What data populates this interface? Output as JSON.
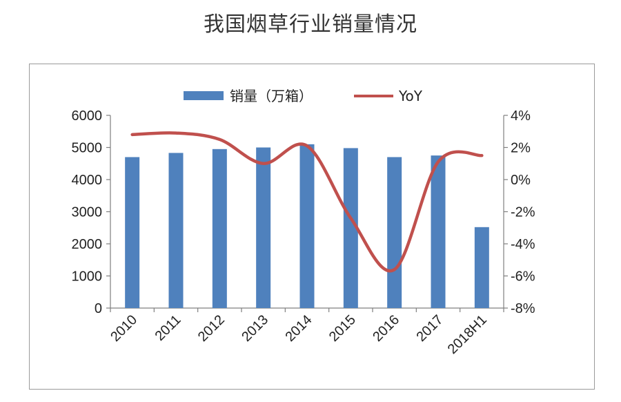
{
  "chart_data": {
    "type": "bar",
    "title": "我国烟草行业销量情况",
    "categories": [
      "2010",
      "2011",
      "2012",
      "2013",
      "2014",
      "2015",
      "2016",
      "2017",
      "2018H1"
    ],
    "series": [
      {
        "name": "销量（万箱）",
        "type": "bar",
        "axis": "left",
        "color": "#4F81BD",
        "values": [
          4700,
          4830,
          4950,
          5000,
          5100,
          4980,
          4700,
          4750,
          2520
        ]
      },
      {
        "name": "YoY",
        "type": "line",
        "axis": "right",
        "color": "#C0504D",
        "values": [
          2.8,
          2.9,
          2.5,
          1.0,
          2.1,
          -2.4,
          -5.6,
          1.1,
          1.5
        ]
      }
    ],
    "y_left": {
      "min": 0,
      "max": 6000,
      "ticks": [
        "0",
        "1000",
        "2000",
        "3000",
        "4000",
        "5000",
        "6000"
      ]
    },
    "y_right": {
      "min": -8,
      "max": 4,
      "ticks": [
        "-8%",
        "-6%",
        "-4%",
        "-2%",
        "0%",
        "2%",
        "4%"
      ]
    },
    "legend_position": "top",
    "grid": false
  }
}
